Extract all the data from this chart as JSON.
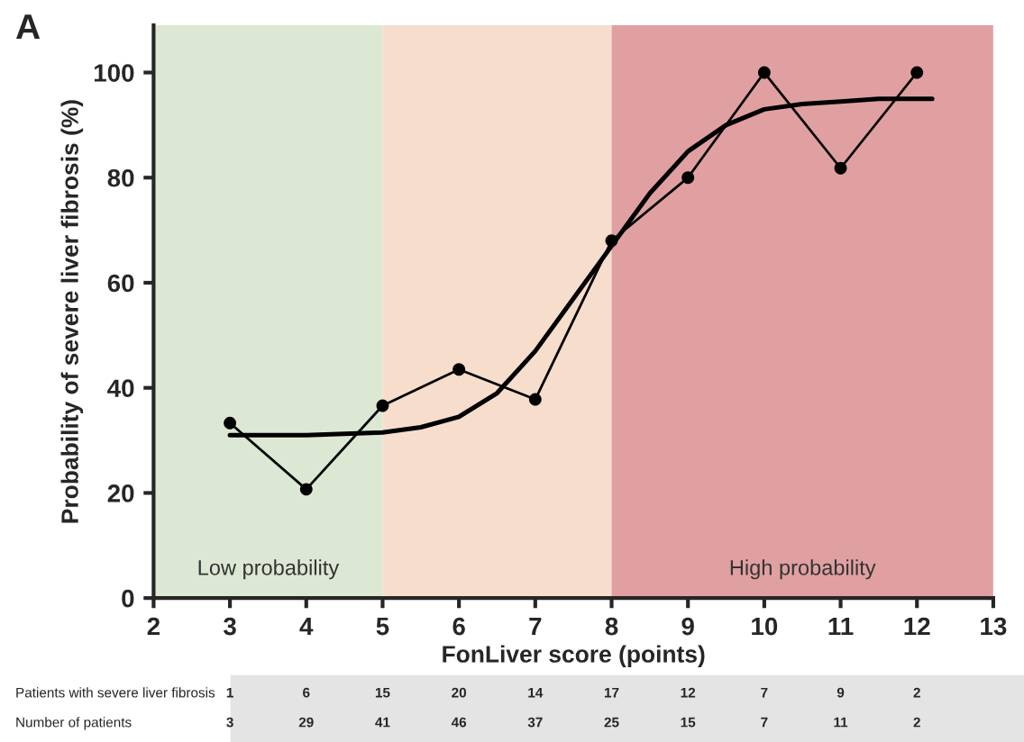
{
  "chart_data": {
    "type": "line",
    "xlabel": "FonLiver score (points)",
    "ylabel": "Probability of severe liver fibrosis (%)",
    "x": [
      3,
      4,
      5,
      6,
      7,
      8,
      9,
      10,
      11,
      12
    ],
    "series": [
      {
        "color": "#000000",
        "marker": "circle",
        "values": [
          33.3,
          20.7,
          36.6,
          43.5,
          37.8,
          68,
          80,
          100,
          81.8,
          100
        ]
      },
      {
        "type": "line",
        "color": "#000000",
        "marker": "none",
        "x": [
          3,
          4,
          5,
          5.5,
          6,
          6.5,
          7,
          7.5,
          8,
          8.5,
          9,
          9.5,
          10,
          10.5,
          11,
          11.5,
          12.2
        ],
        "values": [
          31,
          31,
          31.5,
          32.5,
          34.5,
          39,
          47,
          57,
          67,
          77,
          85,
          90,
          93,
          94,
          94.5,
          95,
          95
        ]
      }
    ],
    "xlim": [
      2,
      13
    ],
    "xticks": [
      2,
      3,
      4,
      5,
      6,
      7,
      8,
      9,
      10,
      11,
      12,
      13
    ],
    "ylim": [
      0,
      109
    ],
    "yticks": [
      0,
      20,
      40,
      60,
      80,
      100
    ],
    "bands": [
      {
        "axis": "x",
        "from": 2,
        "to": 5,
        "label": "Low probability",
        "color": "#dce8d4"
      },
      {
        "axis": "x",
        "from": 5,
        "to": 8,
        "label": null,
        "color": "#f7ddcc"
      },
      {
        "axis": "x",
        "from": 8,
        "to": 13,
        "label": "High probability",
        "color": "#e0a0a1"
      }
    ],
    "annotations": [
      "A",
      "Patients with severe liver fibrosis",
      "1",
      "6",
      "15",
      "20",
      "14",
      "17",
      "12",
      "7",
      "9",
      "2",
      "Number of patients",
      "3",
      "29",
      "41",
      "46",
      "37",
      "25",
      "15",
      "7",
      "11",
      "2"
    ],
    "grid": false,
    "legend": false
  }
}
